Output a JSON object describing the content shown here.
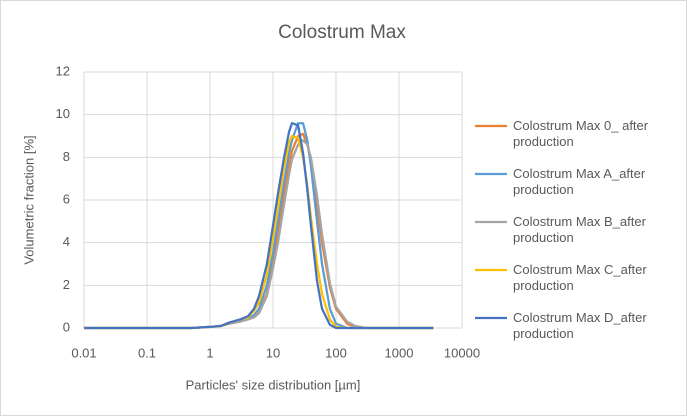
{
  "chart_data": {
    "type": "line",
    "title": "Colostrum Max",
    "x_label": "Particles' size distribution [µm]",
    "y_label": "Volumetric fraction [%]",
    "x_scale": "log",
    "grid": true,
    "legend": "right",
    "xlim": [
      0.01,
      10000
    ],
    "xticks": [
      0.01,
      0.1,
      1,
      10,
      100,
      1000,
      10000
    ],
    "ylim": [
      0,
      12
    ],
    "yticks": [
      0,
      2,
      4,
      6,
      8,
      10,
      12
    ],
    "x": [
      0.01,
      0.1,
      0.5,
      1,
      1.5,
      2,
      3,
      4,
      5,
      6,
      8,
      10,
      12,
      15,
      18,
      20,
      25,
      30,
      35,
      40,
      50,
      60,
      80,
      100,
      150,
      200,
      300,
      1000,
      3500
    ],
    "series": [
      {
        "name": "Colostrum Max 0_ after production",
        "color": "#ed7d31",
        "values": [
          0,
          0,
          0,
          0.05,
          0.1,
          0.2,
          0.3,
          0.4,
          0.5,
          0.7,
          1.6,
          3.0,
          4.4,
          6.2,
          7.6,
          8.3,
          9.0,
          9.1,
          8.6,
          7.8,
          5.8,
          4.0,
          1.9,
          0.9,
          0.2,
          0.05,
          0,
          0,
          0
        ]
      },
      {
        "name": "Colostrum Max A_after production",
        "color": "#5b9bd5",
        "values": [
          0,
          0,
          0,
          0.05,
          0.1,
          0.25,
          0.35,
          0.45,
          0.6,
          0.9,
          2.0,
          3.5,
          5.0,
          6.8,
          8.2,
          8.8,
          9.6,
          9.6,
          8.8,
          7.6,
          5.0,
          3.0,
          0.9,
          0.2,
          0,
          0,
          0,
          0,
          0
        ]
      },
      {
        "name": "Colostrum Max B_after production",
        "color": "#a5a5a5",
        "values": [
          0,
          0,
          0,
          0.05,
          0.1,
          0.2,
          0.3,
          0.4,
          0.5,
          0.7,
          1.5,
          2.8,
          4.0,
          5.8,
          7.2,
          7.9,
          8.6,
          8.8,
          8.6,
          8.0,
          6.2,
          4.4,
          2.1,
          1.0,
          0.3,
          0.1,
          0,
          0,
          0
        ]
      },
      {
        "name": "Colostrum Max C_after production",
        "color": "#ffc000",
        "values": [
          0,
          0,
          0,
          0.05,
          0.1,
          0.25,
          0.4,
          0.5,
          0.8,
          1.2,
          2.5,
          4.2,
          5.7,
          7.5,
          8.7,
          9.0,
          8.9,
          8.0,
          6.7,
          5.2,
          3.0,
          1.6,
          0.4,
          0.05,
          0,
          0,
          0,
          0,
          0
        ]
      },
      {
        "name": "Colostrum Max D_after production",
        "color": "#4472c4",
        "values": [
          0,
          0,
          0,
          0.05,
          0.1,
          0.25,
          0.4,
          0.55,
          0.9,
          1.5,
          3.0,
          4.8,
          6.3,
          8.0,
          9.2,
          9.6,
          9.5,
          8.2,
          6.5,
          4.8,
          2.2,
          0.9,
          0.15,
          0,
          0,
          0,
          0,
          0,
          0
        ]
      }
    ]
  }
}
